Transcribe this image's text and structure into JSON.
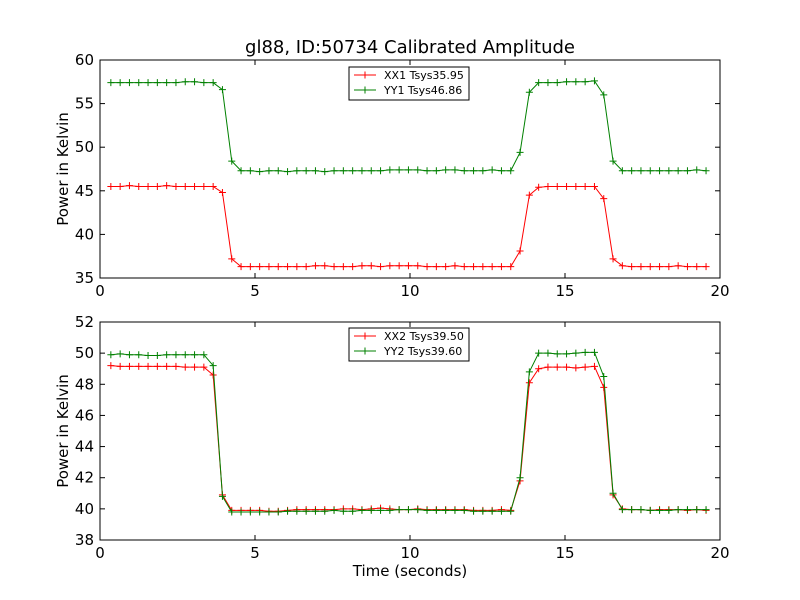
{
  "page": {
    "title": "gl88, ID:50734 Calibrated Amplitude"
  },
  "chart_data": [
    {
      "type": "line",
      "title": "gl88, ID:50734 Calibrated Amplitude",
      "xlabel": "",
      "ylabel": "Power in Kelvin",
      "xlim": [
        0,
        20
      ],
      "ylim": [
        35,
        60
      ],
      "xticks": [
        0,
        5,
        10,
        15,
        20
      ],
      "yticks": [
        35,
        40,
        45,
        50,
        55,
        60
      ],
      "grid": false,
      "legend_position": "top-center",
      "x": [
        0.35,
        0.65,
        0.95,
        1.25,
        1.55,
        1.85,
        2.15,
        2.45,
        2.75,
        3.05,
        3.35,
        3.65,
        3.95,
        4.25,
        4.55,
        4.85,
        5.15,
        5.45,
        5.75,
        6.05,
        6.35,
        6.65,
        6.95,
        7.25,
        7.55,
        7.85,
        8.15,
        8.45,
        8.75,
        9.05,
        9.35,
        9.65,
        9.95,
        10.25,
        10.55,
        10.85,
        11.15,
        11.45,
        11.75,
        12.05,
        12.35,
        12.65,
        12.95,
        13.25,
        13.55,
        13.85,
        14.15,
        14.45,
        14.75,
        15.05,
        15.35,
        15.65,
        15.95,
        16.25,
        16.55,
        16.85,
        17.15,
        17.45,
        17.75,
        18.05,
        18.35,
        18.65,
        18.95,
        19.25,
        19.55
      ],
      "series": [
        {
          "name": "XX1 Tsys35.95",
          "color": "#ff0000",
          "values": [
            45.5,
            45.5,
            45.6,
            45.5,
            45.5,
            45.5,
            45.6,
            45.5,
            45.5,
            45.5,
            45.5,
            45.5,
            44.8,
            37.2,
            36.3,
            36.3,
            36.3,
            36.3,
            36.3,
            36.3,
            36.3,
            36.3,
            36.4,
            36.4,
            36.3,
            36.3,
            36.3,
            36.4,
            36.4,
            36.3,
            36.4,
            36.4,
            36.4,
            36.4,
            36.3,
            36.3,
            36.3,
            36.4,
            36.3,
            36.3,
            36.3,
            36.3,
            36.3,
            36.3,
            38.1,
            44.5,
            45.4,
            45.5,
            45.5,
            45.5,
            45.5,
            45.5,
            45.5,
            44.1,
            37.2,
            36.4,
            36.3,
            36.3,
            36.3,
            36.3,
            36.3,
            36.4,
            36.3,
            36.3,
            36.3
          ]
        },
        {
          "name": "YY1 Tsys46.86",
          "color": "#008000",
          "values": [
            57.4,
            57.4,
            57.4,
            57.4,
            57.4,
            57.4,
            57.4,
            57.4,
            57.5,
            57.5,
            57.4,
            57.4,
            56.6,
            48.4,
            47.3,
            47.3,
            47.2,
            47.3,
            47.3,
            47.2,
            47.3,
            47.3,
            47.3,
            47.2,
            47.3,
            47.3,
            47.3,
            47.3,
            47.3,
            47.3,
            47.4,
            47.4,
            47.4,
            47.4,
            47.3,
            47.3,
            47.4,
            47.4,
            47.3,
            47.3,
            47.3,
            47.4,
            47.3,
            47.3,
            49.4,
            56.3,
            57.4,
            57.4,
            57.4,
            57.5,
            57.5,
            57.5,
            57.6,
            56.0,
            48.4,
            47.3,
            47.3,
            47.3,
            47.3,
            47.3,
            47.3,
            47.3,
            47.3,
            47.4,
            47.3
          ]
        }
      ]
    },
    {
      "type": "line",
      "title": "",
      "xlabel": "Time (seconds)",
      "ylabel": "Power in Kelvin",
      "xlim": [
        0,
        20
      ],
      "ylim": [
        38,
        52
      ],
      "xticks": [
        0,
        5,
        10,
        15,
        20
      ],
      "yticks": [
        38,
        40,
        42,
        44,
        46,
        48,
        50,
        52
      ],
      "grid": false,
      "legend_position": "top-center",
      "x": [
        0.35,
        0.65,
        0.95,
        1.25,
        1.55,
        1.85,
        2.15,
        2.45,
        2.75,
        3.05,
        3.35,
        3.65,
        3.95,
        4.25,
        4.55,
        4.85,
        5.15,
        5.45,
        5.75,
        6.05,
        6.35,
        6.65,
        6.95,
        7.25,
        7.55,
        7.85,
        8.15,
        8.45,
        8.75,
        9.05,
        9.35,
        9.65,
        9.95,
        10.25,
        10.55,
        10.85,
        11.15,
        11.45,
        11.75,
        12.05,
        12.35,
        12.65,
        12.95,
        13.25,
        13.55,
        13.85,
        14.15,
        14.45,
        14.75,
        15.05,
        15.35,
        15.65,
        15.95,
        16.25,
        16.55,
        16.85,
        17.15,
        17.45,
        17.75,
        18.05,
        18.35,
        18.65,
        18.95,
        19.25,
        19.55
      ],
      "series": [
        {
          "name": "XX2 Tsys39.50",
          "color": "#ff0000",
          "values": [
            49.2,
            49.15,
            49.15,
            49.15,
            49.15,
            49.15,
            49.15,
            49.15,
            49.1,
            49.1,
            49.1,
            48.6,
            40.9,
            39.9,
            39.9,
            39.9,
            39.9,
            39.85,
            39.85,
            39.9,
            39.95,
            39.95,
            39.95,
            39.95,
            39.95,
            40.0,
            40.0,
            39.95,
            40.0,
            40.05,
            40.0,
            39.95,
            39.95,
            40.0,
            39.95,
            39.95,
            39.95,
            39.95,
            39.95,
            39.9,
            39.9,
            39.9,
            39.95,
            39.9,
            41.8,
            48.1,
            49.0,
            49.1,
            49.1,
            49.1,
            49.05,
            49.1,
            49.15,
            47.8,
            40.9,
            40.0,
            39.95,
            39.95,
            39.9,
            39.95,
            39.95,
            39.95,
            39.9,
            39.95,
            39.9
          ]
        },
        {
          "name": "YY2 Tsys39.60",
          "color": "#008000",
          "values": [
            49.9,
            49.95,
            49.9,
            49.9,
            49.85,
            49.85,
            49.9,
            49.9,
            49.9,
            49.9,
            49.9,
            49.2,
            40.8,
            39.8,
            39.8,
            39.8,
            39.8,
            39.8,
            39.8,
            39.85,
            39.85,
            39.85,
            39.85,
            39.85,
            39.9,
            39.85,
            39.85,
            39.9,
            39.9,
            39.9,
            39.9,
            39.95,
            39.95,
            39.95,
            39.9,
            39.9,
            39.9,
            39.9,
            39.9,
            39.85,
            39.85,
            39.85,
            39.85,
            39.85,
            42.0,
            48.8,
            50.0,
            50.0,
            49.95,
            49.95,
            50.0,
            50.05,
            50.05,
            48.5,
            41.0,
            39.95,
            39.95,
            39.95,
            39.9,
            39.9,
            39.9,
            39.95,
            39.95,
            39.95,
            39.95
          ]
        }
      ]
    }
  ]
}
